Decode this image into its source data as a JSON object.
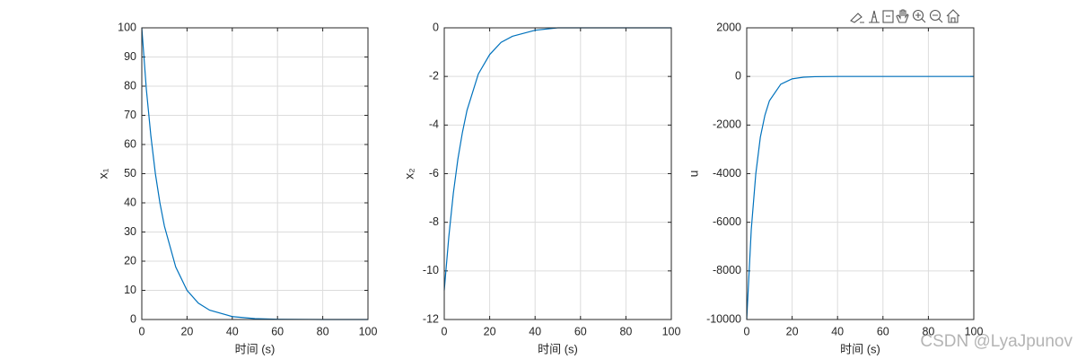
{
  "chart_data": [
    {
      "type": "line",
      "xlabel": "时间 (s)",
      "ylabel": "x₁",
      "x": [
        0,
        2,
        4,
        6,
        8,
        10,
        15,
        20,
        25,
        30,
        40,
        50,
        60,
        80,
        100
      ],
      "series": [
        {
          "color": "#0072bd",
          "values": [
            100,
            79,
            63,
            50,
            40,
            32,
            18,
            10,
            5.6,
            3.2,
            1,
            0.3,
            0.1,
            0,
            0
          ]
        }
      ],
      "xlim": [
        0,
        100
      ],
      "xticks": [
        0,
        20,
        40,
        60,
        80,
        100
      ],
      "ylim": [
        0,
        100
      ],
      "yticks": [
        0,
        10,
        20,
        30,
        40,
        50,
        60,
        70,
        80,
        90,
        100
      ],
      "grid": true
    },
    {
      "type": "line",
      "xlabel": "时间 (s)",
      "ylabel": "x₂",
      "x": [
        0,
        2,
        4,
        6,
        8,
        10,
        15,
        20,
        25,
        30,
        40,
        50,
        60,
        80,
        100
      ],
      "series": [
        {
          "color": "#0072bd",
          "values": [
            -10.8,
            -8.6,
            -6.8,
            -5.4,
            -4.3,
            -3.4,
            -1.9,
            -1.1,
            -0.6,
            -0.35,
            -0.1,
            0,
            0,
            0,
            0
          ]
        }
      ],
      "xlim": [
        0,
        100
      ],
      "xticks": [
        0,
        20,
        40,
        60,
        80,
        100
      ],
      "ylim": [
        -12,
        0
      ],
      "yticks": [
        -12,
        -10,
        -8,
        -6,
        -4,
        -2,
        0
      ],
      "grid": true
    },
    {
      "type": "line",
      "xlabel": "时间 (s)",
      "ylabel": "u",
      "x": [
        0,
        2,
        4,
        6,
        8,
        10,
        15,
        20,
        25,
        30,
        40,
        50,
        60,
        80,
        100
      ],
      "series": [
        {
          "color": "#0072bd",
          "values": [
            -10000,
            -6300,
            -4000,
            -2500,
            -1600,
            -1000,
            -320,
            -100,
            -30,
            -10,
            0,
            0,
            0,
            0,
            0
          ]
        }
      ],
      "xlim": [
        0,
        100
      ],
      "xticks": [
        0,
        20,
        40,
        60,
        80,
        100
      ],
      "ylim": [
        -10000,
        2000
      ],
      "yticks": [
        -10000,
        -8000,
        -6000,
        -4000,
        -2000,
        0,
        2000
      ],
      "grid": true
    }
  ],
  "watermark": "CSDN @LyaJpunov"
}
